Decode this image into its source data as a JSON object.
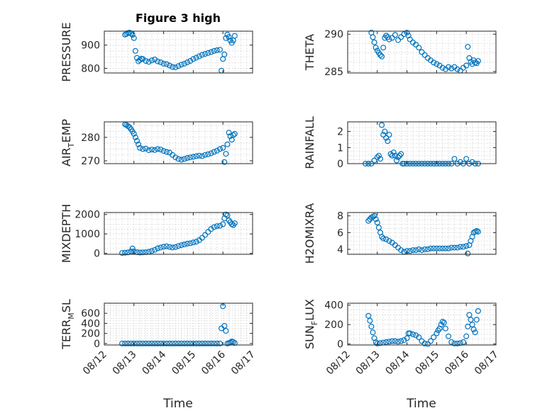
{
  "figure": {
    "title": "Figure 3 high"
  },
  "chart_data": [
    {
      "type": "scatter",
      "id": "pressure",
      "ylabel": "PRESSURE",
      "ylim": [
        780,
        960
      ],
      "yticks": [
        800,
        900
      ],
      "xlim": [
        0,
        5
      ],
      "x": [
        0.7,
        0.75,
        0.8,
        0.85,
        0.9,
        0.95,
        1.0,
        1.05,
        1.1,
        1.15,
        1.2,
        1.25,
        1.3,
        1.4,
        1.5,
        1.6,
        1.7,
        1.8,
        1.9,
        2.0,
        2.1,
        2.2,
        2.3,
        2.4,
        2.5,
        2.6,
        2.7,
        2.8,
        2.9,
        3.0,
        3.1,
        3.2,
        3.3,
        3.4,
        3.5,
        3.6,
        3.7,
        3.8,
        3.9,
        3.95,
        4.0,
        4.05,
        4.1,
        4.15,
        4.2,
        4.25,
        4.3,
        4.35,
        4.4
      ],
      "y": [
        945,
        948,
        952,
        954,
        950,
        944,
        930,
        875,
        845,
        830,
        836,
        842,
        840,
        832,
        828,
        834,
        838,
        830,
        826,
        820,
        818,
        812,
        806,
        804,
        810,
        816,
        820,
        826,
        832,
        840,
        846,
        852,
        858,
        862,
        866,
        870,
        875,
        878,
        880,
        790,
        840,
        860,
        930,
        945,
        935,
        920,
        910,
        920,
        940
      ]
    },
    {
      "type": "scatter",
      "id": "theta",
      "ylabel": "THETA",
      "ylim": [
        284.8,
        290.4
      ],
      "yticks": [
        285,
        290
      ],
      "xlim": [
        0,
        5
      ],
      "x": [
        0.8,
        0.85,
        0.9,
        0.95,
        1.0,
        1.05,
        1.1,
        1.15,
        1.2,
        1.25,
        1.3,
        1.35,
        1.4,
        1.5,
        1.6,
        1.7,
        1.8,
        1.9,
        2.0,
        2.05,
        2.1,
        2.2,
        2.3,
        2.4,
        2.5,
        2.6,
        2.7,
        2.8,
        2.9,
        3.0,
        3.1,
        3.2,
        3.3,
        3.4,
        3.5,
        3.6,
        3.7,
        3.8,
        3.9,
        4.0,
        4.05,
        4.1,
        4.15,
        4.2,
        4.25,
        4.3,
        4.35,
        4.4
      ],
      "y": [
        290.2,
        289.6,
        288.9,
        288.2,
        287.8,
        287.5,
        287.2,
        287.0,
        288.2,
        289.5,
        289.8,
        289.6,
        289.3,
        289.5,
        289.9,
        289.2,
        289.6,
        290.0,
        290.2,
        289.8,
        289.3,
        288.9,
        288.6,
        288.2,
        287.6,
        287.2,
        286.8,
        286.5,
        286.2,
        286.0,
        285.8,
        285.5,
        285.3,
        285.6,
        285.4,
        285.6,
        285.3,
        285.1,
        285.5,
        285.8,
        288.3,
        286.8,
        286.3,
        286.0,
        286.5,
        286.2,
        286.1,
        286.4
      ]
    },
    {
      "type": "scatter",
      "id": "air_temp",
      "ylabel": "AIR_TEMP",
      "ylim": [
        268.8,
        286.6
      ],
      "yticks": [
        270,
        280
      ],
      "xlim": [
        0,
        5
      ],
      "x": [
        0.7,
        0.75,
        0.8,
        0.85,
        0.9,
        0.95,
        1.0,
        1.05,
        1.1,
        1.15,
        1.2,
        1.3,
        1.4,
        1.5,
        1.6,
        1.7,
        1.8,
        1.9,
        2.0,
        2.1,
        2.2,
        2.3,
        2.4,
        2.5,
        2.6,
        2.7,
        2.8,
        2.9,
        3.0,
        3.1,
        3.2,
        3.3,
        3.4,
        3.5,
        3.6,
        3.7,
        3.8,
        3.9,
        4.0,
        4.05,
        4.1,
        4.15,
        4.2,
        4.25,
        4.3,
        4.35,
        4.4
      ],
      "y": [
        285.5,
        285.2,
        284.8,
        284.3,
        283.5,
        282.5,
        281.5,
        280.0,
        278.5,
        277.0,
        275.5,
        275.0,
        275.2,
        274.5,
        274.8,
        274.6,
        275.0,
        274.8,
        274.2,
        273.8,
        273.5,
        272.5,
        271.5,
        270.8,
        270.5,
        270.8,
        271.2,
        271.5,
        271.7,
        272.0,
        272.2,
        272.0,
        272.5,
        272.8,
        273.2,
        273.8,
        274.3,
        275.0,
        275.5,
        269.5,
        273.0,
        277.0,
        282.0,
        280.5,
        279.0,
        281.0,
        281.5
      ]
    },
    {
      "type": "scatter",
      "id": "rainfall",
      "ylabel": "RAINFALL",
      "ylim": [
        0,
        2.6
      ],
      "yticks": [
        0,
        1,
        2
      ],
      "xlim": [
        0,
        5
      ],
      "x": [
        0.6,
        0.7,
        0.8,
        0.9,
        1.0,
        1.05,
        1.1,
        1.15,
        1.2,
        1.25,
        1.3,
        1.35,
        1.4,
        1.45,
        1.5,
        1.55,
        1.6,
        1.65,
        1.7,
        1.75,
        1.8,
        1.85,
        1.9,
        2.0,
        2.1,
        2.2,
        2.3,
        2.4,
        2.5,
        2.6,
        2.7,
        2.8,
        2.9,
        3.0,
        3.1,
        3.2,
        3.3,
        3.4,
        3.5,
        3.6,
        3.7,
        3.8,
        3.9,
        4.0,
        4.1,
        4.2,
        4.3,
        4.4
      ],
      "y": [
        0,
        0,
        0,
        0.2,
        0.4,
        0.5,
        0.3,
        2.4,
        1.8,
        2.0,
        1.6,
        1.4,
        1.8,
        0.6,
        0.5,
        0.7,
        0.5,
        0.2,
        0.4,
        0.5,
        0.6,
        0,
        0,
        0,
        0,
        0,
        0,
        0,
        0,
        0,
        0,
        0,
        0,
        0,
        0,
        0,
        0,
        0,
        0,
        0.3,
        0,
        0.1,
        0,
        0.3,
        0,
        0.1,
        0,
        0
      ]
    },
    {
      "type": "scatter",
      "id": "mixdepth",
      "ylabel": "MIXDEPTH",
      "ylim": [
        -50,
        2100
      ],
      "yticks": [
        0,
        1000,
        2000
      ],
      "xlim": [
        0,
        5
      ],
      "x": [
        0.6,
        0.7,
        0.8,
        0.9,
        0.95,
        1.0,
        1.1,
        1.2,
        1.3,
        1.4,
        1.5,
        1.6,
        1.7,
        1.8,
        1.9,
        2.0,
        2.1,
        2.2,
        2.3,
        2.4,
        2.5,
        2.6,
        2.7,
        2.8,
        2.9,
        3.0,
        3.1,
        3.2,
        3.3,
        3.4,
        3.5,
        3.6,
        3.7,
        3.8,
        3.9,
        4.0,
        4.05,
        4.1,
        4.15,
        4.2,
        4.25,
        4.3,
        4.35,
        4.4
      ],
      "y": [
        20,
        30,
        50,
        100,
        250,
        100,
        60,
        40,
        50,
        60,
        80,
        120,
        180,
        260,
        300,
        340,
        360,
        330,
        300,
        320,
        380,
        420,
        460,
        500,
        520,
        560,
        600,
        680,
        800,
        950,
        1100,
        1250,
        1350,
        1400,
        1420,
        1500,
        1800,
        2000,
        1950,
        1700,
        1600,
        1500,
        1450,
        1550
      ]
    },
    {
      "type": "scatter",
      "id": "h2omixra",
      "ylabel": "H2OMIXRA",
      "ylim": [
        3.4,
        8.4
      ],
      "yticks": [
        4,
        6,
        8
      ],
      "xlim": [
        0,
        5
      ],
      "x": [
        0.7,
        0.75,
        0.8,
        0.85,
        0.9,
        0.95,
        1.0,
        1.05,
        1.1,
        1.15,
        1.2,
        1.3,
        1.4,
        1.5,
        1.6,
        1.7,
        1.8,
        1.9,
        2.0,
        2.1,
        2.2,
        2.3,
        2.4,
        2.5,
        2.6,
        2.7,
        2.8,
        2.9,
        3.0,
        3.1,
        3.2,
        3.3,
        3.4,
        3.5,
        3.6,
        3.7,
        3.8,
        3.9,
        4.0,
        4.05,
        4.1,
        4.15,
        4.2,
        4.25,
        4.3,
        4.35,
        4.4
      ],
      "y": [
        7.4,
        7.6,
        7.8,
        7.9,
        8.0,
        7.6,
        7.2,
        6.6,
        6.0,
        5.5,
        5.3,
        5.2,
        5.0,
        4.8,
        4.5,
        4.2,
        3.9,
        3.7,
        3.8,
        3.8,
        3.9,
        3.9,
        4.0,
        3.9,
        4.0,
        4.0,
        4.1,
        4.1,
        4.1,
        4.1,
        4.1,
        4.1,
        4.1,
        4.2,
        4.2,
        4.2,
        4.3,
        4.3,
        4.4,
        3.5,
        4.5,
        5.0,
        5.5,
        6.0,
        6.1,
        6.2,
        6.1
      ]
    },
    {
      "type": "scatter",
      "id": "terr_msl",
      "ylabel": "TERR_MSL",
      "ylim": [
        -30,
        800
      ],
      "yticks": [
        0,
        200,
        400,
        600
      ],
      "xlim": [
        0,
        5
      ],
      "x": [
        0.6,
        0.7,
        0.8,
        0.9,
        1.0,
        1.1,
        1.2,
        1.3,
        1.4,
        1.5,
        1.6,
        1.7,
        1.8,
        1.9,
        2.0,
        2.1,
        2.2,
        2.3,
        2.4,
        2.5,
        2.6,
        2.7,
        2.8,
        2.9,
        3.0,
        3.1,
        3.2,
        3.3,
        3.4,
        3.5,
        3.6,
        3.7,
        3.8,
        3.9,
        3.95,
        4.0,
        4.05,
        4.1,
        4.15,
        4.2,
        4.25,
        4.3,
        4.35,
        4.4
      ],
      "y": [
        0,
        0,
        0,
        0,
        0,
        0,
        0,
        0,
        0,
        0,
        0,
        0,
        0,
        0,
        0,
        0,
        0,
        0,
        0,
        0,
        0,
        0,
        0,
        0,
        0,
        0,
        0,
        0,
        0,
        0,
        0,
        0,
        0,
        0,
        300,
        740,
        350,
        250,
        0,
        10,
        20,
        40,
        30,
        10
      ]
    },
    {
      "type": "scatter",
      "id": "sun_flux",
      "ylabel": "SUN_FLUX",
      "ylim": [
        -10,
        420
      ],
      "yticks": [
        0,
        200,
        400
      ],
      "xlim": [
        0,
        5
      ],
      "x": [
        0.7,
        0.75,
        0.8,
        0.85,
        0.9,
        0.95,
        1.0,
        1.1,
        1.2,
        1.3,
        1.4,
        1.5,
        1.6,
        1.7,
        1.8,
        1.9,
        2.0,
        2.05,
        2.1,
        2.2,
        2.3,
        2.4,
        2.5,
        2.6,
        2.7,
        2.8,
        2.9,
        3.0,
        3.05,
        3.1,
        3.15,
        3.2,
        3.25,
        3.3,
        3.4,
        3.5,
        3.6,
        3.7,
        3.8,
        3.9,
        4.0,
        4.05,
        4.1,
        4.15,
        4.2,
        4.25,
        4.3,
        4.35,
        4.4
      ],
      "y": [
        290,
        240,
        180,
        120,
        60,
        20,
        5,
        10,
        15,
        20,
        25,
        30,
        30,
        25,
        30,
        40,
        60,
        110,
        110,
        100,
        90,
        70,
        30,
        5,
        0,
        30,
        70,
        110,
        140,
        160,
        200,
        230,
        220,
        160,
        80,
        20,
        5,
        5,
        10,
        20,
        80,
        180,
        300,
        250,
        200,
        150,
        120,
        250,
        340
      ]
    }
  ],
  "x_axis": {
    "tick_labels": [
      "08/12",
      "08/13",
      "08/14",
      "08/15",
      "08/16",
      "08/17"
    ],
    "label": "Time"
  },
  "colors": {
    "marker": "#0072BD",
    "axes": "#262626",
    "grid": "#d0d0d0"
  }
}
